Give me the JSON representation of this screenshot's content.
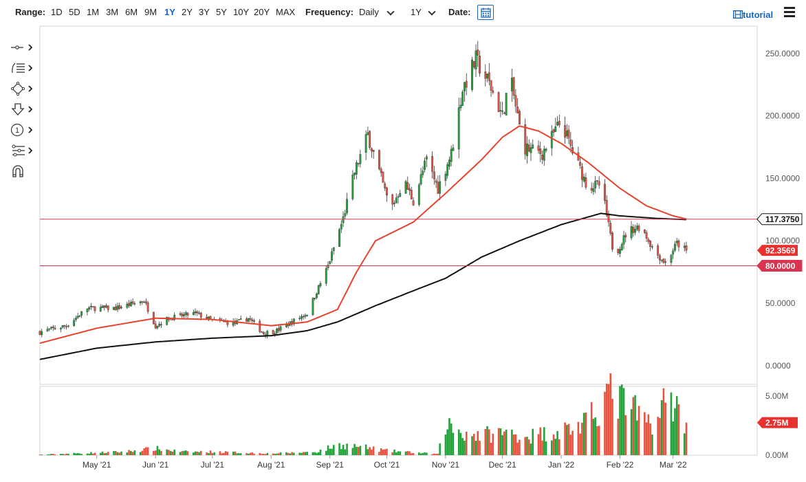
{
  "toolbar": {
    "range_label": "Range:",
    "ranges": [
      "1D",
      "5D",
      "1M",
      "3M",
      "6M",
      "9M",
      "1Y",
      "2Y",
      "3Y",
      "5Y",
      "10Y",
      "20Y",
      "MAX"
    ],
    "active_range": "1Y",
    "frequency_label": "Frequency:",
    "frequency_value": "Daily",
    "period_value": "1Y",
    "date_label": "Date:",
    "tutorial_label": "tutorial"
  },
  "icons": {
    "calendar": "calendar-icon",
    "tutorial": "film-icon",
    "menu": "hamburger-menu-icon",
    "tools": [
      "line-tool-icon",
      "fibonacci-tool-icon",
      "shape-tool-icon",
      "arrow-down-icon",
      "numbered-marker-icon",
      "pattern-tool-icon",
      "magnet-icon"
    ]
  },
  "colors": {
    "up": "#22a33a",
    "down": "#e8533f",
    "ma_fast": "#e8422c",
    "ma_slow": "#111111",
    "hline": "#d93450",
    "price_badge": "#e8322f"
  },
  "chart_data": {
    "type": "candlestick",
    "x_tick_labels": [
      "May '21",
      "Jun '21",
      "Jul '21",
      "Aug '21",
      "Sep '21",
      "Oct '21",
      "Nov '21",
      "Dec '21",
      "Jan '22",
      "Feb '22",
      "Mar '22"
    ],
    "y_axis": {
      "ticks": [
        "0.0000",
        "50.0000",
        "100.0000",
        "150.0000",
        "200.0000",
        "250.0000"
      ],
      "ylim": [
        -15,
        272
      ]
    },
    "volume_axis": {
      "ticks": [
        "0.00M",
        "2.75M",
        "5.00M"
      ],
      "ylim": [
        0,
        5.8
      ]
    },
    "horizontal_lines": [
      {
        "value": 117.375,
        "label": "117.3750"
      },
      {
        "value": 80.0,
        "label": "80.0000"
      }
    ],
    "last_price": {
      "value": 92.3569,
      "label": "92.3569"
    },
    "last_volume": {
      "value": 2.75,
      "label": "2.75M"
    },
    "price_anchors": [
      [
        "2021-04-01",
        27
      ],
      [
        "2021-04-15",
        32
      ],
      [
        "2021-04-26",
        46
      ],
      [
        "2021-05-11",
        46
      ],
      [
        "2021-05-26",
        52
      ],
      [
        "2021-06-01",
        32
      ],
      [
        "2021-06-08",
        38
      ],
      [
        "2021-06-22",
        42
      ],
      [
        "2021-07-01",
        36
      ],
      [
        "2021-07-13",
        34
      ],
      [
        "2021-07-20",
        38
      ],
      [
        "2021-07-28",
        26
      ],
      [
        "2021-08-04",
        28
      ],
      [
        "2021-08-20",
        42
      ],
      [
        "2021-08-31",
        80
      ],
      [
        "2021-09-08",
        118
      ],
      [
        "2021-09-14",
        155
      ],
      [
        "2021-09-21",
        185
      ],
      [
        "2021-09-28",
        150
      ],
      [
        "2021-10-03",
        125
      ],
      [
        "2021-10-10",
        148
      ],
      [
        "2021-10-15",
        132
      ],
      [
        "2021-10-22",
        165
      ],
      [
        "2021-10-28",
        142
      ],
      [
        "2021-11-04",
        170
      ],
      [
        "2021-11-10",
        222
      ],
      [
        "2021-11-17",
        245
      ],
      [
        "2021-11-24",
        226
      ],
      [
        "2021-12-01",
        200
      ],
      [
        "2021-12-05",
        232
      ],
      [
        "2021-12-12",
        175
      ],
      [
        "2021-12-22",
        170
      ],
      [
        "2022-01-01",
        196
      ],
      [
        "2022-01-06",
        175
      ],
      [
        "2022-01-15",
        143
      ],
      [
        "2022-01-22",
        145
      ],
      [
        "2022-01-29",
        87
      ],
      [
        "2022-02-05",
        108
      ],
      [
        "2022-02-12",
        112
      ],
      [
        "2022-02-19",
        92
      ],
      [
        "2022-02-25",
        82
      ],
      [
        "2022-03-03",
        98
      ],
      [
        "2022-03-08",
        92.36
      ]
    ],
    "ma_fast_anchors": [
      [
        "2021-04-01",
        18
      ],
      [
        "2021-05-01",
        30
      ],
      [
        "2021-06-01",
        38
      ],
      [
        "2021-07-01",
        37
      ],
      [
        "2021-08-01",
        32
      ],
      [
        "2021-08-20",
        35
      ],
      [
        "2021-09-05",
        45
      ],
      [
        "2021-09-15",
        75
      ],
      [
        "2021-09-25",
        100
      ],
      [
        "2021-10-15",
        115
      ],
      [
        "2021-11-01",
        138
      ],
      [
        "2021-11-20",
        165
      ],
      [
        "2021-12-01",
        183
      ],
      [
        "2021-12-10",
        192
      ],
      [
        "2021-12-20",
        188
      ],
      [
        "2022-01-01",
        178
      ],
      [
        "2022-01-15",
        163
      ],
      [
        "2022-02-01",
        142
      ],
      [
        "2022-02-15",
        128
      ],
      [
        "2022-03-01",
        120
      ],
      [
        "2022-03-08",
        117.5
      ]
    ],
    "ma_slow_anchors": [
      [
        "2021-04-01",
        5
      ],
      [
        "2021-05-01",
        14
      ],
      [
        "2021-06-01",
        19
      ],
      [
        "2021-07-01",
        22
      ],
      [
        "2021-08-01",
        24
      ],
      [
        "2021-08-20",
        28
      ],
      [
        "2021-09-05",
        35
      ],
      [
        "2021-09-25",
        48
      ],
      [
        "2021-10-15",
        60
      ],
      [
        "2021-11-01",
        70
      ],
      [
        "2021-11-20",
        87
      ],
      [
        "2021-12-10",
        100
      ],
      [
        "2022-01-01",
        113
      ],
      [
        "2022-01-22",
        122
      ],
      [
        "2022-02-01",
        120
      ],
      [
        "2022-02-20",
        118
      ],
      [
        "2022-03-08",
        117
      ]
    ],
    "volume_anchors": [
      [
        "2021-04-01",
        0.05
      ],
      [
        "2021-05-15",
        0.3
      ],
      [
        "2021-06-01",
        0.6
      ],
      [
        "2021-06-15",
        0.3
      ],
      [
        "2021-07-01",
        0.3
      ],
      [
        "2021-08-01",
        0.15
      ],
      [
        "2021-08-25",
        0.3
      ],
      [
        "2021-09-05",
        0.9
      ],
      [
        "2021-09-15",
        0.8
      ],
      [
        "2021-10-01",
        0.4
      ],
      [
        "2021-10-28",
        0.1
      ],
      [
        "2021-11-01",
        2.8
      ],
      [
        "2021-11-10",
        2.0
      ],
      [
        "2021-11-20",
        1.8
      ],
      [
        "2021-12-01",
        2.0
      ],
      [
        "2021-12-15",
        1.7
      ],
      [
        "2022-01-01",
        2.2
      ],
      [
        "2022-01-15",
        2.8
      ],
      [
        "2022-01-25",
        5.5
      ],
      [
        "2022-02-05",
        4.4
      ],
      [
        "2022-02-15",
        2.9
      ],
      [
        "2022-02-22",
        3.5
      ],
      [
        "2022-02-26",
        5.5
      ],
      [
        "2022-03-03",
        4.2
      ],
      [
        "2022-03-08",
        2.75
      ]
    ],
    "period": {
      "start": "2021-04-01",
      "end": "2022-03-08"
    }
  }
}
